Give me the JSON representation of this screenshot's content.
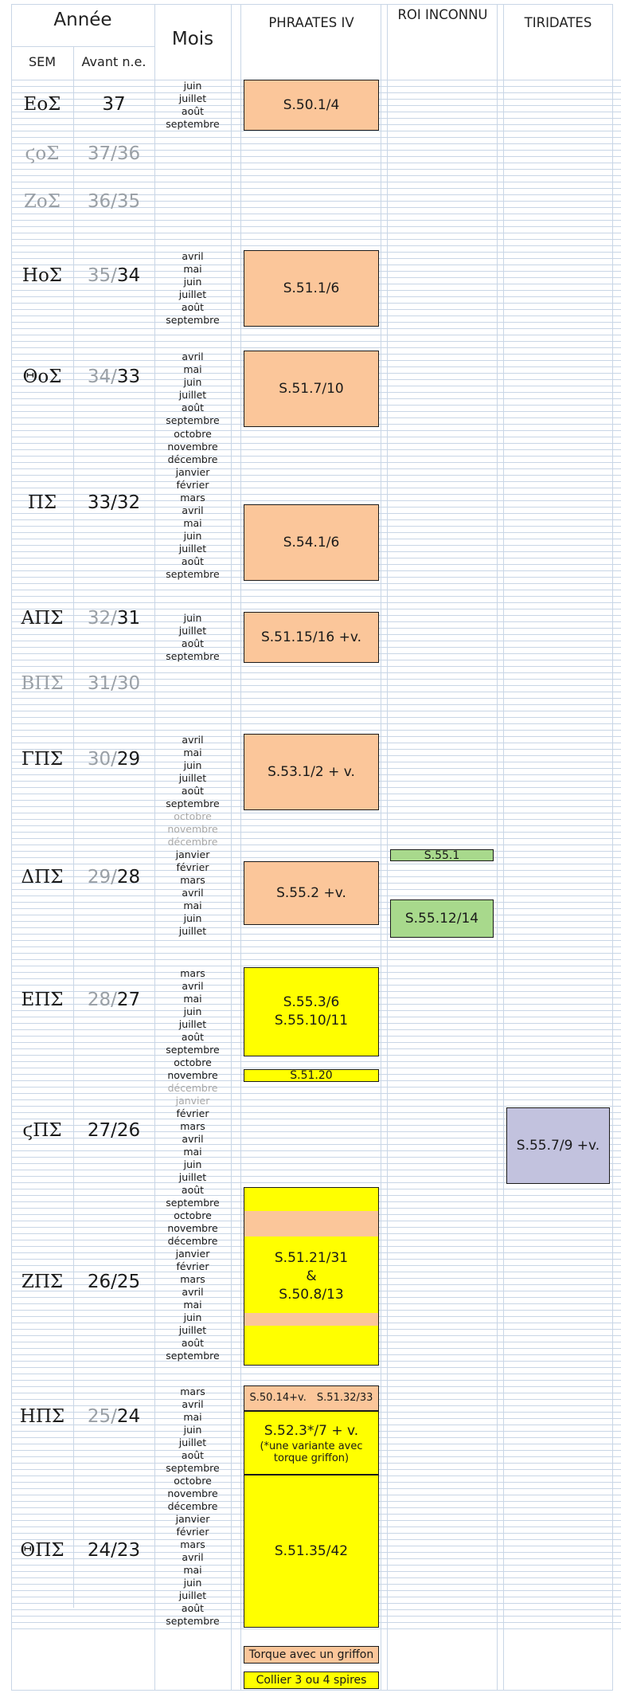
{
  "header": {
    "year": "Année",
    "sem": "SEM",
    "before_ne": "Avant n.e.",
    "months": "Mois",
    "king_phraates": "PHRAATES IV",
    "king_unknown": "ROI INCONNU",
    "king_tiridates": "TIRIDATES"
  },
  "years": [
    {
      "sem": "ΕοΣ",
      "bc_grey": "",
      "bc": "37"
    },
    {
      "sem": "ϛοΣ",
      "bc_grey": "37/36",
      "bc": ""
    },
    {
      "sem": "ΖοΣ",
      "bc_grey": "36/35",
      "bc": ""
    },
    {
      "sem": "ΗοΣ",
      "bc_grey": "35/",
      "bc": "34"
    },
    {
      "sem": "ΘοΣ",
      "bc_grey": "34/",
      "bc": "33"
    },
    {
      "sem": "ΠΣ",
      "bc_grey": "",
      "bc": "33/32"
    },
    {
      "sem": "ΑΠΣ",
      "bc_grey": "32/",
      "bc": "31"
    },
    {
      "sem": "ΒΠΣ",
      "bc_grey": "31/30",
      "bc": ""
    },
    {
      "sem": "ΓΠΣ",
      "bc_grey": "30/",
      "bc": "29"
    },
    {
      "sem": "ΔΠΣ",
      "bc_grey": "29/",
      "bc": "28"
    },
    {
      "sem": "ΕΠΣ",
      "bc_grey": "28/",
      "bc": "27"
    },
    {
      "sem": "ϛΠΣ",
      "bc_grey": "",
      "bc": "27/26"
    },
    {
      "sem": "ΖΠΣ",
      "bc_grey": "",
      "bc": "26/25"
    },
    {
      "sem": "ΗΠΣ",
      "bc_grey": "25/",
      "bc": "24"
    },
    {
      "sem": "ΘΠΣ",
      "bc_grey": "",
      "bc": "24/23"
    }
  ],
  "months": {
    "y37": [
      "juin",
      "juillet",
      "août",
      "septembre"
    ],
    "y35": [
      "avril",
      "mai",
      "juin",
      "juillet",
      "août",
      "septembre"
    ],
    "y34": [
      "avril",
      "mai",
      "juin",
      "juillet",
      "août",
      "septembre"
    ],
    "y33": [
      "octobre",
      "novembre",
      "décembre",
      "janvier",
      "février",
      "mars",
      "avril",
      "mai",
      "juin",
      "juillet",
      "août",
      "septembre"
    ],
    "y32": [
      "juin",
      "juillet",
      "août",
      "septembre"
    ],
    "y30": [
      "avril",
      "mai",
      "juin",
      "juillet",
      "août",
      "septembre"
    ],
    "y29": [
      "octobre",
      "novembre",
      "décembre",
      "janvier",
      "février",
      "mars",
      "avril",
      "mai",
      "juin",
      "juillet"
    ],
    "y28": [
      "mars",
      "avril",
      "mai",
      "juin",
      "juillet",
      "août",
      "septembre"
    ],
    "y27": [
      "octobre",
      "novembre",
      "décembre",
      "janvier",
      "février",
      "mars",
      "avril",
      "mai",
      "juin",
      "juillet",
      "août",
      "septembre"
    ],
    "y26": [
      "octobre",
      "novembre",
      "décembre",
      "janvier",
      "février",
      "mars",
      "avril",
      "mai",
      "juin",
      "juillet",
      "août",
      "septembre"
    ],
    "y25": [
      "mars",
      "avril",
      "mai",
      "juin",
      "juillet",
      "août",
      "septembre"
    ],
    "y24": [
      "octobre",
      "novembre",
      "décembre",
      "janvier",
      "février",
      "mars",
      "avril",
      "mai",
      "juin",
      "juillet",
      "août",
      "septembre"
    ]
  },
  "issues": {
    "s50_1_4": "S.50.1/4",
    "s51_1_6": "S.51.1/6",
    "s51_7_10": "S.51.7/10",
    "s54_1_6": "S.54.1/6",
    "s51_15_16": "S.51.15/16 +v.",
    "s53_1_2": "S.53.1/2 + v.",
    "s55_2": "S.55.2 +v.",
    "s55_1": "S.55.1",
    "s55_12_14": "S.55.12/14",
    "s55_3_6": "S.55.3/6",
    "s55_10_11": "S.55.10/11",
    "s51_20": "S.51.20",
    "s55_7_9": "S.55.7/9 +v.",
    "s51_21_31": "S.51.21/31",
    "amp": "&",
    "s50_8_13": "S.50.8/13",
    "s50_14": "S.50.14+v.",
    "s51_32_33": "S.51.32/33",
    "s52_3": "S.52.3*/7 + v.",
    "s52_note": "(*une variante avec torque griffon)",
    "s51_35_42": "S.51.35/42"
  },
  "legend": {
    "torque": "Torque avec un griffon",
    "collier": "Collier 3 ou 4 spires"
  },
  "colors": {
    "peach": "#fbc69a",
    "yellow": "#ffff00",
    "green": "#a8d98c",
    "lavender": "#c2c2de",
    "grid": "#c9d6e6",
    "grey_text": "#9aa0a6"
  }
}
